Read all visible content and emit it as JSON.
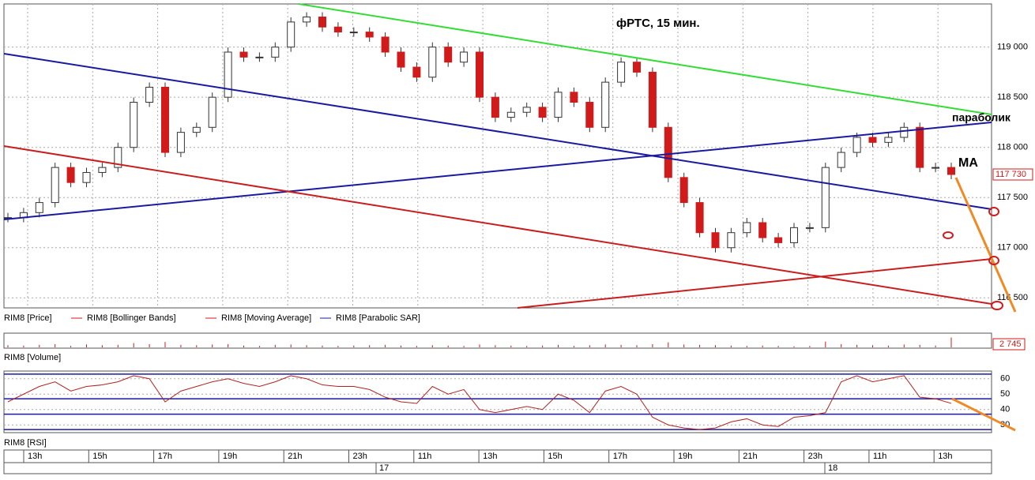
{
  "chart_data": [
    {
      "type": "candlestick",
      "title": "фРТС, 15 мин.",
      "annotations": [
        "параболик",
        "MA"
      ],
      "legend": [
        "RIM8 [Price]",
        "RIM8 [Bollinger Bands]",
        "RIM8 [Moving Average]",
        "RIM8 [Parabolic SAR]"
      ],
      "up_color": "#ffffff",
      "down_color": "#d11a1a",
      "values": [
        117300,
        117350,
        117450,
        117800,
        117650,
        117750,
        117800,
        118000,
        118450,
        118600,
        117950,
        118150,
        118200,
        118500,
        118950,
        118900,
        118900,
        119000,
        119250,
        119300,
        119200,
        119150,
        119150,
        119100,
        118950,
        118800,
        118700,
        119000,
        118850,
        118950,
        118500,
        118300,
        118350,
        118400,
        118300,
        118550,
        118450,
        118200,
        118650,
        118850,
        118750,
        118200,
        117700,
        117450,
        117150,
        117000,
        117150,
        117250,
        117100,
        117050,
        117200,
        117200,
        117800,
        117950,
        118100,
        118050,
        118100,
        118200,
        117800,
        117800,
        117730
      ],
      "current": {
        "value": 117730,
        "label": "117 730"
      },
      "ylim": [
        116400,
        119430
      ],
      "yticks": [
        {
          "value": 116500,
          "label": "116 500"
        },
        {
          "value": 117000,
          "label": "117 000"
        },
        {
          "value": 117500,
          "label": "117 500"
        },
        {
          "value": 118000,
          "label": "118 000"
        },
        {
          "value": 118500,
          "label": "118 500"
        },
        {
          "value": 119000,
          "label": "119 000"
        }
      ],
      "grid": true
    },
    {
      "type": "bar",
      "title": "RIM8 [Volume]",
      "color": "#d11a1a",
      "values": [
        600,
        500,
        700,
        900,
        400,
        800,
        600,
        700,
        1200,
        900,
        1500,
        700,
        600,
        800,
        900,
        500,
        400,
        700,
        800,
        600,
        500,
        400,
        500,
        600,
        700,
        500,
        400,
        600,
        500,
        400,
        800,
        600,
        500,
        400,
        500,
        700,
        400,
        600,
        800,
        700,
        600,
        900,
        1400,
        800,
        700,
        600,
        500,
        400,
        500,
        400,
        300,
        400,
        1600,
        900,
        700,
        600,
        500,
        800,
        700,
        500,
        2745
      ],
      "current": {
        "value": 2745,
        "label": "2 745"
      },
      "ylim": [
        0,
        3500
      ]
    },
    {
      "type": "line",
      "title": "RIM8 [RSI]",
      "color": "#b22222",
      "values": [
        45,
        50,
        55,
        58,
        52,
        55,
        56,
        58,
        62,
        60,
        45,
        52,
        55,
        58,
        60,
        57,
        55,
        58,
        62,
        60,
        56,
        55,
        55,
        53,
        48,
        45,
        44,
        55,
        50,
        53,
        40,
        38,
        40,
        42,
        40,
        50,
        46,
        38,
        52,
        55,
        50,
        35,
        30,
        28,
        27,
        28,
        32,
        34,
        30,
        29,
        35,
        36,
        38,
        58,
        62,
        58,
        60,
        62,
        48,
        47,
        44
      ],
      "levels": [
        63,
        47,
        37,
        27
      ],
      "ylim": [
        25,
        65
      ],
      "yticks": [
        30,
        40,
        50,
        60
      ],
      "times": [
        "13h",
        "15h",
        "17h",
        "19h",
        "21h",
        "23h",
        "11h",
        "13h",
        "15h",
        "17h",
        "19h",
        "21h",
        "23h",
        "11h",
        "13h"
      ],
      "days": [
        "17",
        "18"
      ]
    }
  ]
}
